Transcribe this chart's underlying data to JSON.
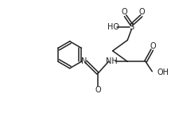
{
  "bg_color": "#ffffff",
  "line_color": "#222222",
  "lw": 1.1,
  "fs": 7.0,
  "figsize": [
    2.15,
    1.67
  ],
  "dpi": 100,
  "xlim": [
    -0.2,
    10.0
  ],
  "ylim": [
    -0.3,
    7.5
  ]
}
